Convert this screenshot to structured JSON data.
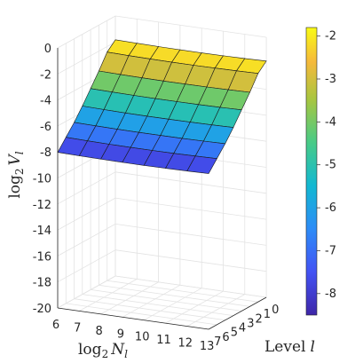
{
  "chart_data": {
    "type": "surface",
    "xlabel": {
      "base": "log",
      "sub": "2",
      "var": "N",
      "varsub": "l"
    },
    "ylabel": {
      "text": "Level",
      "var": "l"
    },
    "zlabel": {
      "base": "log",
      "sub": "2",
      "var": "V",
      "varsub": "l"
    },
    "x_ticks": [
      "6",
      "7",
      "8",
      "9",
      "10",
      "11",
      "12",
      "13"
    ],
    "y_ticks": [
      "7",
      "6",
      "5",
      "4",
      "3",
      "2",
      "1",
      "0"
    ],
    "z_ticks": [
      "0",
      "-2",
      "-4",
      "-6",
      "-8",
      "-10",
      "-12",
      "-14",
      "-16",
      "-18",
      "-20"
    ],
    "xlim": [
      6,
      13
    ],
    "ylim": [
      0,
      7
    ],
    "zlim": [
      -20,
      0
    ],
    "x_values": [
      6,
      7,
      8,
      9,
      10,
      11,
      12,
      13
    ],
    "level_values": [
      0,
      1,
      2,
      3,
      4,
      5,
      6,
      7
    ],
    "z_by_level": [
      -1.9,
      -2.5,
      -3.6,
      -4.6,
      -5.6,
      -6.5,
      -7.3,
      -8.1
    ],
    "colorbar": {
      "ticks": [
        "-2",
        "-3",
        "-4",
        "-5",
        "-6",
        "-7",
        "-8"
      ],
      "range": [
        -8.5,
        -1.8
      ]
    },
    "grid": true,
    "colormap": "parula"
  }
}
